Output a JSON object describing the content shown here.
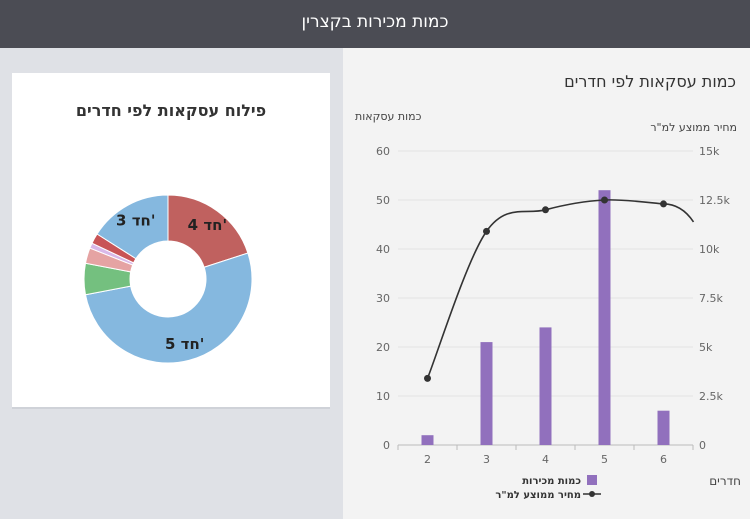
{
  "header": {
    "title": "כמות מכירות בקצרין"
  },
  "donut": {
    "title": "פילוח עסקאות לפי חדרים",
    "slices": [
      {
        "label": "4 חד'",
        "value": 20,
        "color": "#c0615f"
      },
      {
        "label": "5 חד'",
        "value": 52,
        "color": "#85b8df"
      },
      {
        "label": "",
        "value": 6,
        "color": "#74c07f"
      },
      {
        "label": "",
        "value": 3,
        "color": "#e5a3a3"
      },
      {
        "label": "",
        "value": 1,
        "color": "#d9b8e8"
      },
      {
        "label": "",
        "value": 2,
        "color": "#c85456"
      },
      {
        "label": "3 חד'",
        "value": 16,
        "color": "#85b8df"
      }
    ]
  },
  "panel": {
    "title": "כמות עסקאות לפי חדרים"
  },
  "chart_data": {
    "type": "bar",
    "categories": [
      "2",
      "3",
      "4",
      "5",
      "6"
    ],
    "series": [
      {
        "name": "כמות מכירות",
        "type": "bar",
        "axis": "left",
        "values": [
          2,
          21,
          24,
          52,
          7
        ],
        "color": "#9170bd"
      },
      {
        "name": "מחיר ממוצע למ\"ר",
        "type": "line",
        "axis": "right",
        "values": [
          3400,
          10900,
          12000,
          12500,
          12300
        ],
        "color": "#333333"
      }
    ],
    "ylabel_left": "כמות עסקאות",
    "ylabel_right": "מחיר ממוצע למ\"ר",
    "xlabel": "חדרים",
    "ylim_left": [
      0,
      60
    ],
    "ylim_right": [
      0,
      15000
    ],
    "yticks_left": [
      "0",
      "10",
      "20",
      "30",
      "40",
      "50",
      "60"
    ],
    "yticks_right": [
      "0",
      "2.5k",
      "5k",
      "7.5k",
      "10k",
      "12.5k",
      "15k"
    ],
    "grid": true,
    "legend": [
      {
        "label": "כמות מכירות",
        "kind": "bar"
      },
      {
        "label": "מחיר ממוצע למ\"ר",
        "kind": "line"
      }
    ]
  }
}
